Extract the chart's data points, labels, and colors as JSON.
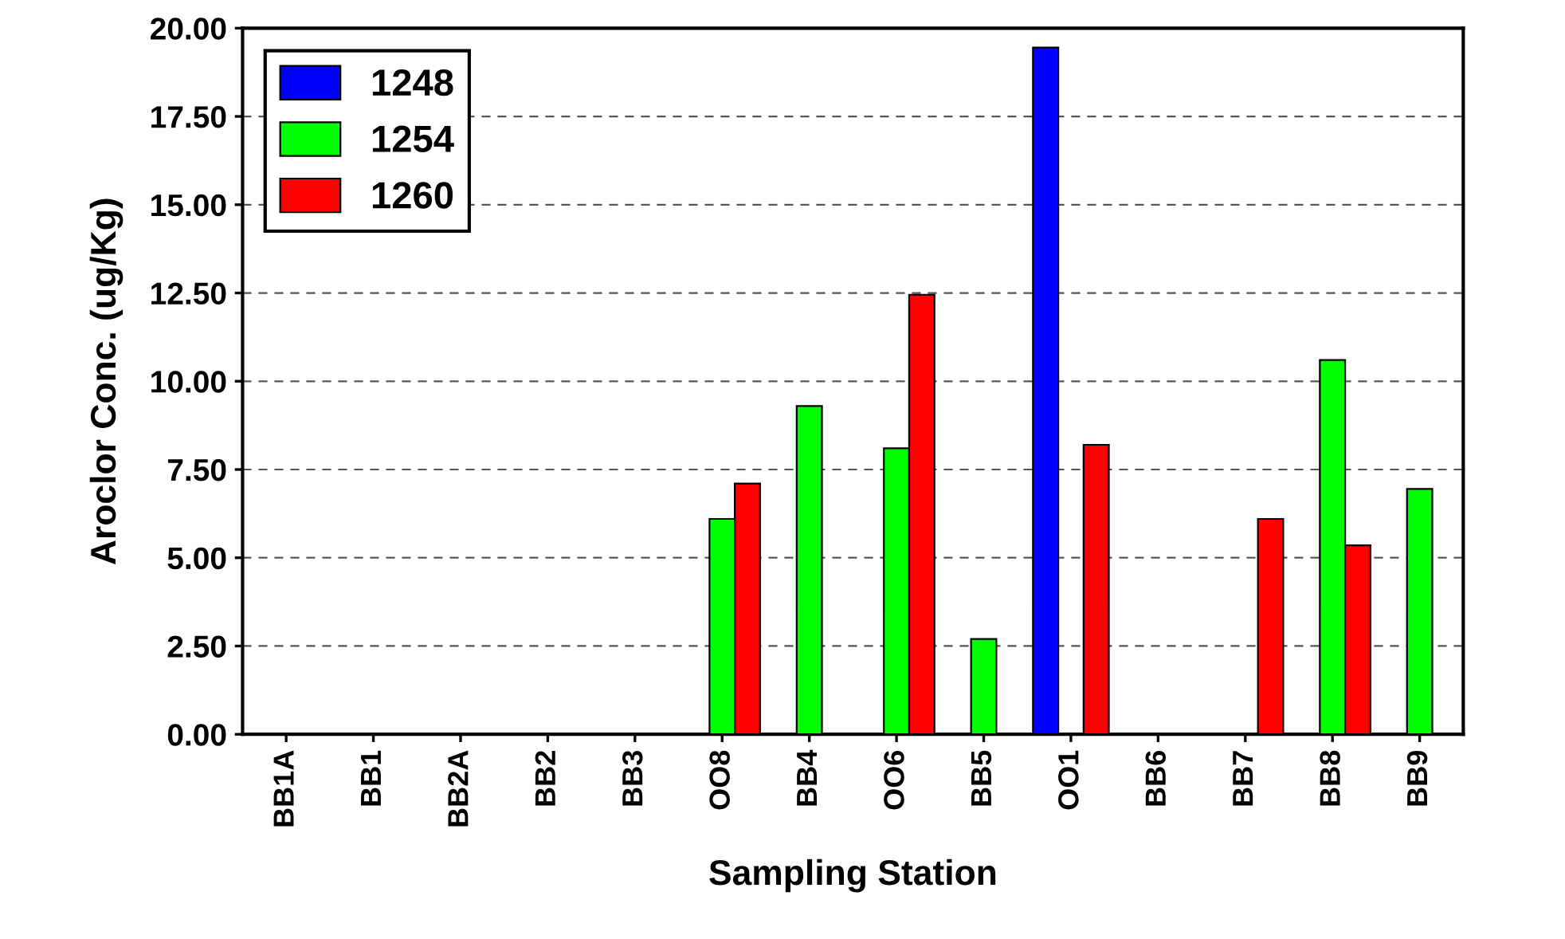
{
  "chart_data": {
    "type": "bar",
    "xlabel": "Sampling Station",
    "ylabel": "Aroclor Conc. (ug/Kg)",
    "categories": [
      "BB1A",
      "BB1",
      "BB2A",
      "BB2",
      "BB3",
      "OO8",
      "BB4",
      "OO6",
      "BB5",
      "OO1",
      "BB6",
      "BB7",
      "BB8",
      "BB9"
    ],
    "series": [
      {
        "name": "1248",
        "color": "#0000ff",
        "values": [
          null,
          null,
          null,
          null,
          null,
          null,
          null,
          null,
          null,
          19.45,
          null,
          null,
          null,
          null
        ]
      },
      {
        "name": "1254",
        "color": "#00ff00",
        "values": [
          null,
          null,
          null,
          null,
          null,
          6.1,
          9.3,
          8.1,
          2.7,
          null,
          null,
          null,
          10.6,
          6.95
        ]
      },
      {
        "name": "1260",
        "color": "#ff0000",
        "values": [
          null,
          null,
          null,
          null,
          null,
          7.1,
          null,
          12.45,
          null,
          8.2,
          null,
          6.1,
          5.35,
          null
        ]
      }
    ],
    "ylim": [
      0,
      20
    ],
    "yticks": [
      {
        "value": 0,
        "label": "0.00"
      },
      {
        "value": 2.5,
        "label": "2.50"
      },
      {
        "value": 5,
        "label": "5.00"
      },
      {
        "value": 7.5,
        "label": "7.50"
      },
      {
        "value": 10,
        "label": "10.00"
      },
      {
        "value": 12.5,
        "label": "12.50"
      },
      {
        "value": 15,
        "label": "15.00"
      },
      {
        "value": 17.5,
        "label": "17.50"
      },
      {
        "value": 20,
        "label": "20.00"
      }
    ],
    "grid": "y",
    "legend": "top left"
  }
}
